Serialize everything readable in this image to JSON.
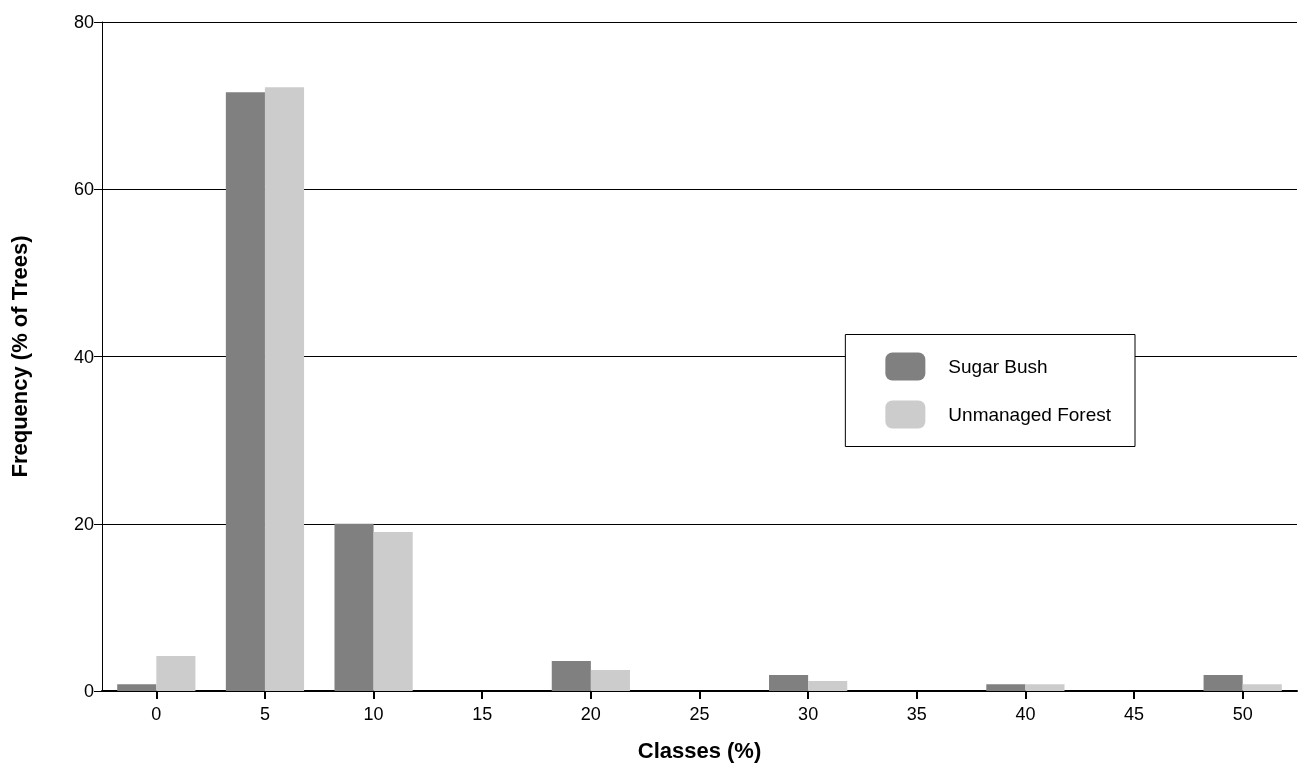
{
  "chart_data": {
    "type": "bar",
    "xlabel": "Classes (%)",
    "ylabel": "Frequency (% of Trees)",
    "categories": [
      "0",
      "5",
      "10",
      "15",
      "20",
      "25",
      "30",
      "35",
      "40",
      "45",
      "50"
    ],
    "series": [
      {
        "name": "Sugar Bush",
        "color": "#808080",
        "values": [
          0.8,
          71.6,
          20,
          0,
          3.6,
          0,
          1.9,
          0,
          0.8,
          0,
          1.9
        ]
      },
      {
        "name": "Unmanaged Forest",
        "color": "#cccccc",
        "values": [
          4.2,
          72.2,
          19,
          0,
          2.5,
          0,
          1.2,
          0,
          0.8,
          0,
          0.8
        ]
      }
    ],
    "ylim": [
      0,
      80
    ],
    "yticks": [
      0,
      20,
      40,
      60,
      80
    ],
    "grid": "y",
    "legend": "right"
  }
}
